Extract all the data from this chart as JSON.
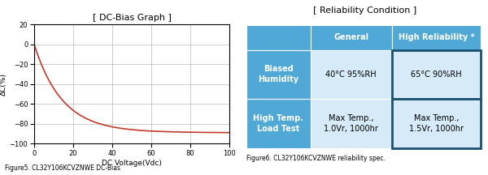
{
  "left_title": "[ DC-Bias Graph ]",
  "right_title": "[ Reliability Condition ]",
  "xlabel": "DC Voltage(Vdc)",
  "ylabel": "ΔC(%)",
  "ylim": [
    -100,
    20
  ],
  "xlim": [
    0,
    100
  ],
  "yticks": [
    -100,
    -80,
    -60,
    -40,
    -20,
    0,
    20
  ],
  "xticks": [
    0,
    20,
    40,
    60,
    80,
    100
  ],
  "curve_color": "#c0392b",
  "fig_caption_left": "Figure5. CL32Y106KCVZNWE DC-Bias",
  "fig_caption_right": "Figure6. CL32Y106KCVZNWE reliability spec.",
  "col_headers": [
    "",
    "General",
    "High Reliability *"
  ],
  "row_labels": [
    "Biased\nHumidity",
    "High Temp.\nLoad Test"
  ],
  "general_values": [
    "40°C 95%RH",
    "Max Temp.,\n1.0Vr, 1000hr"
  ],
  "highrel_values": [
    "65°C 90%RH",
    "Max Temp.,\n1.5Vr, 1000hr"
  ],
  "header_bg": "#4fa8d5",
  "row_label_bg": "#4fa8d5",
  "general_cell_bg": "#d6eaf8",
  "highrel_cell_bg": "#d6eaf8",
  "highrel_border": "#1b4f72",
  "background_color": "#ffffff"
}
